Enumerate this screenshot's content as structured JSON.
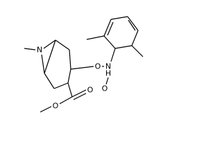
{
  "atoms": [
    {
      "label": "N"
    },
    {
      "label": "O"
    },
    {
      "label": "N"
    },
    {
      "label": "H"
    },
    {
      "label": "O"
    },
    {
      "label": "O"
    },
    {
      "label": "O"
    }
  ]
}
